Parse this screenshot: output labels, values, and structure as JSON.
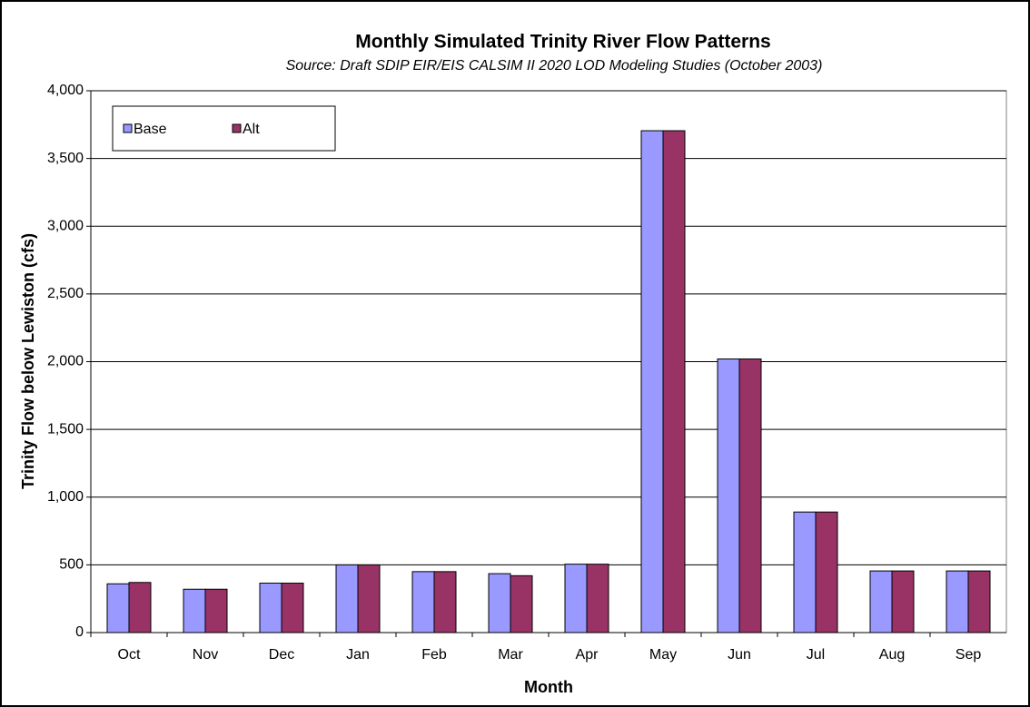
{
  "chart_data": {
    "type": "bar",
    "title": "Monthly Simulated Trinity River Flow Patterns",
    "subtitle": "Source: Draft SDIP EIR/EIS CALSIM II 2020 LOD Modeling Studies (October 2003)",
    "x_label": "Month",
    "y_label": "Trinity Flow below Lewiston (cfs)",
    "categories": [
      "Oct",
      "Nov",
      "Dec",
      "Jan",
      "Feb",
      "Mar",
      "Apr",
      "May",
      "Jun",
      "Jul",
      "Aug",
      "Sep"
    ],
    "series": [
      {
        "name": "Base",
        "color": "#9999ff",
        "values": [
          360,
          320,
          365,
          500,
          450,
          435,
          505,
          3705,
          2020,
          890,
          455,
          455
        ]
      },
      {
        "name": "Alt",
        "color": "#993366",
        "values": [
          370,
          320,
          365,
          500,
          450,
          420,
          505,
          3705,
          2020,
          890,
          455,
          455
        ]
      }
    ],
    "ylim": [
      0,
      4000
    ],
    "yticks": [
      0,
      500,
      {
        "value": 1000,
        "label": "1,000"
      },
      {
        "value": 1500,
        "label": "1,500"
      },
      {
        "value": 2000,
        "label": "2,000"
      },
      {
        "value": 2500,
        "label": "2,500"
      },
      {
        "value": 3000,
        "label": "3,000"
      },
      {
        "value": 3500,
        "label": "3,500"
      },
      {
        "value": 4000,
        "label": "4,000"
      }
    ],
    "grid": true,
    "legend": "top-left"
  }
}
